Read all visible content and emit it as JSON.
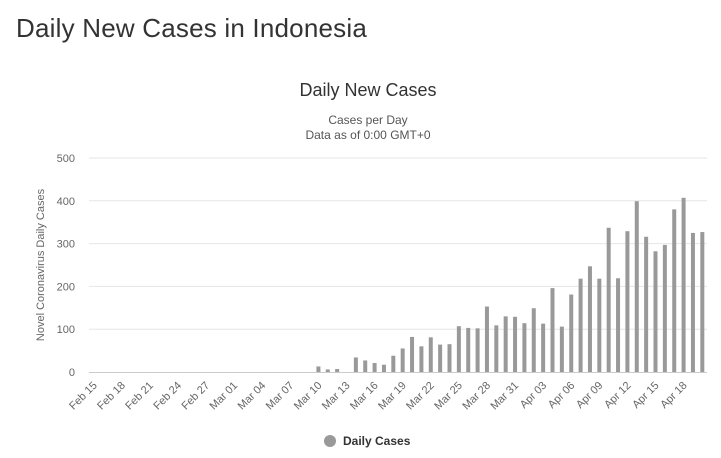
{
  "page": {
    "title": "Daily New Cases in Indonesia"
  },
  "chart_data": {
    "type": "bar",
    "title": "Daily New Cases",
    "subtitle": "Cases per Day",
    "subtitle2": "Data as of 0:00 GMT+0",
    "xlabel": "",
    "ylabel": "Novel Coronavirus Daily Cases",
    "ylim": [
      0,
      500
    ],
    "yticks": [
      0,
      100,
      200,
      300,
      400,
      500
    ],
    "grid": true,
    "legend_position": "bottom",
    "colors": {
      "bar": "#999999",
      "grid": "#e6e6e6",
      "axis": "#cccccc"
    },
    "categories": [
      "Feb 15",
      "Feb 16",
      "Feb 17",
      "Feb 18",
      "Feb 19",
      "Feb 20",
      "Feb 21",
      "Feb 22",
      "Feb 23",
      "Feb 24",
      "Feb 25",
      "Feb 26",
      "Feb 27",
      "Feb 28",
      "Feb 29",
      "Mar 01",
      "Mar 02",
      "Mar 03",
      "Mar 04",
      "Mar 05",
      "Mar 06",
      "Mar 07",
      "Mar 08",
      "Mar 09",
      "Mar 10",
      "Mar 11",
      "Mar 12",
      "Mar 13",
      "Mar 14",
      "Mar 15",
      "Mar 16",
      "Mar 17",
      "Mar 18",
      "Mar 19",
      "Mar 20",
      "Mar 21",
      "Mar 22",
      "Mar 23",
      "Mar 24",
      "Mar 25",
      "Mar 26",
      "Mar 27",
      "Mar 28",
      "Mar 29",
      "Mar 30",
      "Mar 31",
      "Apr 01",
      "Apr 02",
      "Apr 03",
      "Apr 04",
      "Apr 05",
      "Apr 06",
      "Apr 07",
      "Apr 08",
      "Apr 09",
      "Apr 10",
      "Apr 11",
      "Apr 12",
      "Apr 13",
      "Apr 14",
      "Apr 15",
      "Apr 16",
      "Apr 17",
      "Apr 18",
      "Apr 19",
      "Apr 20"
    ],
    "tick_labels": [
      "Feb 15",
      "Feb 18",
      "Feb 21",
      "Feb 24",
      "Feb 27",
      "Mar 01",
      "Mar 04",
      "Mar 07",
      "Mar 10",
      "Mar 13",
      "Mar 16",
      "Mar 19",
      "Mar 22",
      "Mar 25",
      "Mar 28",
      "Mar 31",
      "Apr 03",
      "Apr 06",
      "Apr 09",
      "Apr 12",
      "Apr 15",
      "Apr 18"
    ],
    "series": [
      {
        "name": "Daily Cases",
        "values": [
          0,
          0,
          0,
          0,
          0,
          0,
          0,
          0,
          0,
          0,
          0,
          0,
          0,
          0,
          0,
          0,
          0,
          0,
          0,
          0,
          0,
          0,
          0,
          0,
          13,
          6,
          7,
          0,
          34,
          27,
          21,
          17,
          38,
          55,
          82,
          60,
          81,
          64,
          65,
          107,
          103,
          102,
          153,
          109,
          130,
          129,
          114,
          149,
          113,
          196,
          106,
          181,
          218,
          247,
          218,
          337,
          219,
          329,
          399,
          316,
          282,
          297,
          380,
          407,
          325,
          327
        ]
      }
    ]
  }
}
